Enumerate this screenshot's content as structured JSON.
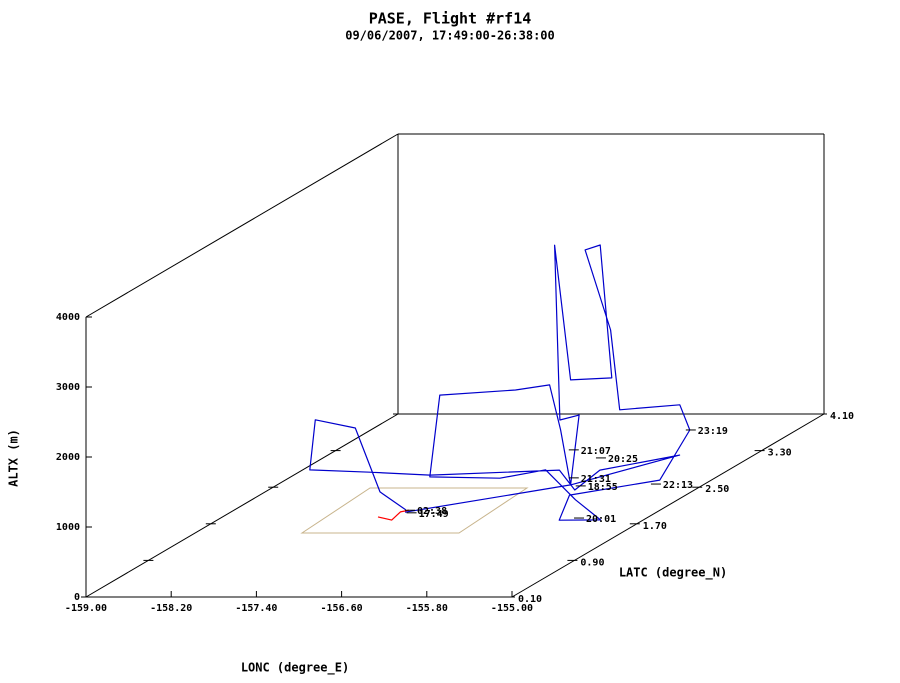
{
  "chart_data": {
    "type": "line3d",
    "title": "PASE, Flight #rf14",
    "subtitle": "09/06/2007, 17:49:00-26:38:00",
    "x_label": "LONC (degree_E)",
    "y_label": "LATC (degree_N)",
    "z_label": "ALTX (m)",
    "xlim": [
      -159,
      -155
    ],
    "ylim": [
      0.1,
      4.1
    ],
    "zlim": [
      0,
      4000
    ],
    "xticks": [
      {
        "value": -159,
        "label": "-159.00"
      },
      {
        "value": -158.2,
        "label": "-158.20"
      },
      {
        "value": -157.4,
        "label": "-157.40"
      },
      {
        "value": -156.6,
        "label": "-156.60"
      },
      {
        "value": -155.8,
        "label": "-155.80"
      },
      {
        "value": -155,
        "label": "-155.00"
      }
    ],
    "yticks": [
      {
        "value": 0.1,
        "label": "0.10"
      },
      {
        "value": 0.9,
        "label": "0.90"
      },
      {
        "value": 1.7,
        "label": "1.70"
      },
      {
        "value": 2.5,
        "label": "2.50"
      },
      {
        "value": 3.3,
        "label": "3.30"
      },
      {
        "value": 4.1,
        "label": "4.10"
      }
    ],
    "zticks": [
      0,
      1000,
      2000,
      3000,
      4000
    ],
    "series": [
      {
        "color": "#ff0000",
        "lon": [
          -157.54,
          -157.36,
          -157.41,
          -157.3
        ],
        "lat": [
          1.85,
          1.78,
          1.96,
          1.92
        ],
        "alt": [
          0,
          0,
          0,
          50
        ]
      },
      {
        "color": "#0000cc",
        "lon": [
          -157.17,
          -157.25,
          -157.16,
          -157.33,
          -157.14,
          -156.54,
          -156.04,
          -155.69,
          -155.45,
          -155.31,
          -155.25,
          -155.46,
          -155.6,
          -155.59,
          -155.75,
          -155.46,
          -155.33,
          -155.38,
          -155.5,
          -155.1,
          -155.08,
          -155.38,
          -155.22,
          -155.26,
          -155.42,
          -155.45,
          -155.18,
          -155.4,
          -155.6,
          -155.67,
          -156.35,
          -156.22,
          -155.48,
          -155.24,
          -155.65,
          -155.46,
          -157.25
        ],
        "lat": [
          1.7,
          1.48,
          1.04,
          0.76,
          0.43,
          0.38,
          0.47,
          1.65,
          1.52,
          1.65,
          2.59,
          1.48,
          1.78,
          1.52,
          1.67,
          1.48,
          1.83,
          1.75,
          1.72,
          1.5,
          1.59,
          2.77,
          2.68,
          2.35,
          1.41,
          1.32,
          1.48,
          1.46,
          1.35,
          0.86,
          0.89,
          0.84,
          0.8,
          0.91,
          1.61,
          1.48,
          1.8
        ],
        "alt": [
          200,
          600,
          1800,
          2100,
          1600,
          1600,
          1500,
          800,
          600,
          800,
          400,
          700,
          1500,
          1600,
          4000,
          2200,
          2000,
          3950,
          3900,
          2900,
          1700,
          1000,
          700,
          200,
          600,
          300,
          200,
          500,
          1000,
          1200,
          1200,
          2400,
          2500,
          2500,
          1400,
          700,
          100
        ]
      }
    ],
    "annotations": [
      {
        "text": "23:19",
        "lon": -155.22,
        "lat": 2.68,
        "alt": 700
      },
      {
        "text": "21:07",
        "lon": -155.44,
        "lat": 1.48,
        "alt": 1200
      },
      {
        "text": "20:25",
        "lon": -155.28,
        "lat": 1.61,
        "alt": 1000
      },
      {
        "text": "22:13",
        "lon": -155.13,
        "lat": 2.11,
        "alt": 300
      },
      {
        "text": "21:31",
        "lon": -155.44,
        "lat": 1.48,
        "alt": 800
      },
      {
        "text": "18:55",
        "lon": -155.47,
        "lat": 1.61,
        "alt": 600
      },
      {
        "text": "20:01",
        "lon": -155.42,
        "lat": 1.52,
        "alt": 200
      },
      {
        "text": "02:38",
        "lon": -157.3,
        "lat": 1.92,
        "alt": 50
      },
      {
        "text": "17:49",
        "lon": -157.3,
        "lat": 1.94,
        "alt": 0
      }
    ]
  }
}
